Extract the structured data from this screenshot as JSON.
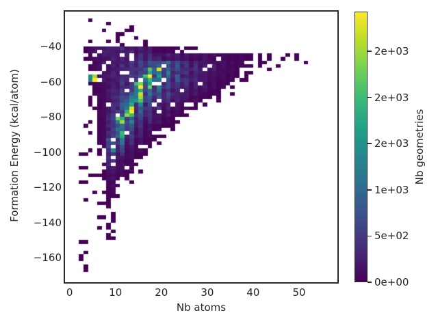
{
  "figure": {
    "background": "#ffffff",
    "spine_color": "#2b2b2b",
    "text_color": "#262626",
    "empty_bin_color": "#ffffff"
  },
  "chart_data": {
    "type": "heatmap",
    "subtype": "2d-histogram",
    "title": "",
    "xlabel": "Nb atoms",
    "ylabel": "Formation Energy (kcal/atom)",
    "colorbar_label": "Nb geometries",
    "grid": false,
    "legend_position": "colorbar-right",
    "xlim": [
      -1.0,
      58.35
    ],
    "ylim": [
      -173.9,
      -20.2
    ],
    "x_ticks": [
      {
        "value": 0,
        "label": "0"
      },
      {
        "value": 10,
        "label": "10"
      },
      {
        "value": 20,
        "label": "20"
      },
      {
        "value": 30,
        "label": "30"
      },
      {
        "value": 40,
        "label": "40"
      },
      {
        "value": 50,
        "label": "50"
      }
    ],
    "y_ticks": [
      {
        "value": -40,
        "label": "−40"
      },
      {
        "value": -60,
        "label": "−60"
      },
      {
        "value": -80,
        "label": "−80"
      },
      {
        "value": -100,
        "label": "−100"
      },
      {
        "value": -120,
        "label": "−120"
      },
      {
        "value": -140,
        "label": "−140"
      },
      {
        "value": -160,
        "label": "−160"
      }
    ],
    "colorbar": {
      "vmin": 0,
      "vmax": 2930,
      "ticks": [
        {
          "value": 0,
          "label": "0e+00"
        },
        {
          "value": 500,
          "label": "5e+02"
        },
        {
          "value": 1000,
          "label": "1e+03"
        },
        {
          "value": 1500,
          "label": "2e+03"
        },
        {
          "value": 2000,
          "label": "2e+03"
        },
        {
          "value": 2500,
          "label": "2e+03"
        }
      ]
    },
    "colormap": {
      "name": "viridis",
      "stops": [
        "#440154",
        "#482878",
        "#3e4989",
        "#31688e",
        "#26828e",
        "#1f9e89",
        "#35b779",
        "#6ece58",
        "#b5de2b",
        "#fde725"
      ]
    },
    "histogram": {
      "x_start": 0,
      "x_bin_width": 2,
      "y_start": -24,
      "y_bin_height": -4,
      "x_bin_count": 29,
      "y_bin_count": 36,
      "counts": [
        [
          0,
          0,
          8,
          0,
          10,
          0,
          0,
          0,
          0,
          0,
          0,
          0,
          0,
          0,
          0,
          0,
          0,
          0,
          0,
          0,
          0,
          0,
          0,
          0,
          0,
          0,
          0,
          0,
          0
        ],
        [
          0,
          0,
          0,
          8,
          0,
          0,
          12,
          0,
          0,
          0,
          0,
          0,
          0,
          0,
          0,
          0,
          0,
          0,
          0,
          0,
          0,
          0,
          0,
          0,
          0,
          0,
          0,
          0,
          0
        ],
        [
          0,
          0,
          0,
          10,
          15,
          12,
          0,
          8,
          0,
          0,
          0,
          0,
          0,
          0,
          0,
          0,
          0,
          0,
          0,
          0,
          0,
          0,
          0,
          0,
          0,
          0,
          0,
          0,
          0
        ],
        [
          0,
          0,
          12,
          0,
          20,
          15,
          12,
          0,
          10,
          0,
          0,
          0,
          0,
          0,
          0,
          0,
          0,
          0,
          0,
          0,
          0,
          0,
          0,
          0,
          0,
          0,
          0,
          0,
          0
        ],
        [
          0,
          10,
          120,
          200,
          260,
          240,
          220,
          180,
          150,
          60,
          40,
          30,
          25,
          20,
          15,
          0,
          0,
          0,
          0,
          0,
          0,
          0,
          0,
          0,
          0,
          0,
          0,
          20,
          0
        ],
        [
          0,
          8,
          60,
          150,
          250,
          280,
          300,
          280,
          260,
          220,
          200,
          180,
          150,
          120,
          100,
          80,
          60,
          50,
          40,
          30,
          25,
          20,
          15,
          10,
          20,
          10,
          0,
          0,
          0
        ],
        [
          0,
          0,
          40,
          120,
          220,
          300,
          350,
          400,
          500,
          800,
          700,
          450,
          350,
          280,
          220,
          160,
          110,
          70,
          45,
          30,
          20,
          12,
          8,
          0,
          0,
          8,
          0,
          0,
          0
        ],
        [
          0,
          0,
          30,
          100,
          200,
          280,
          350,
          450,
          1200,
          1700,
          800,
          550,
          420,
          300,
          220,
          150,
          100,
          60,
          35,
          20,
          12,
          8,
          0,
          0,
          0,
          0,
          0,
          0,
          0
        ],
        [
          0,
          0,
          2600,
          120,
          220,
          300,
          380,
          500,
          2400,
          1100,
          650,
          500,
          380,
          260,
          170,
          110,
          70,
          40,
          20,
          10,
          0,
          0,
          0,
          0,
          0,
          0,
          0,
          0,
          0
        ],
        [
          0,
          0,
          25,
          90,
          200,
          300,
          420,
          2800,
          1300,
          750,
          550,
          420,
          320,
          210,
          130,
          80,
          45,
          25,
          12,
          0,
          0,
          0,
          0,
          0,
          0,
          0,
          0,
          0,
          0
        ],
        [
          0,
          0,
          20,
          80,
          200,
          320,
          500,
          2100,
          850,
          580,
          430,
          330,
          230,
          150,
          90,
          50,
          25,
          12,
          0,
          0,
          0,
          0,
          0,
          0,
          0,
          0,
          0,
          0,
          0
        ],
        [
          0,
          0,
          18,
          70,
          220,
          400,
          1000,
          1700,
          650,
          460,
          330,
          230,
          150,
          80,
          40,
          18,
          8,
          0,
          0,
          0,
          0,
          0,
          0,
          0,
          0,
          0,
          0,
          0,
          0
        ],
        [
          0,
          0,
          15,
          60,
          250,
          520,
          1900,
          750,
          480,
          330,
          220,
          130,
          70,
          30,
          10,
          0,
          0,
          0,
          0,
          0,
          0,
          0,
          0,
          0,
          0,
          0,
          0,
          0,
          0
        ],
        [
          0,
          0,
          12,
          55,
          300,
          620,
          2400,
          560,
          360,
          230,
          140,
          70,
          28,
          12,
          0,
          0,
          0,
          0,
          0,
          0,
          0,
          0,
          0,
          0,
          0,
          0,
          0,
          0,
          0
        ],
        [
          0,
          10,
          10,
          50,
          350,
          2500,
          850,
          380,
          230,
          130,
          60,
          25,
          10,
          0,
          0,
          0,
          0,
          0,
          0,
          0,
          0,
          0,
          0,
          0,
          0,
          0,
          0,
          0,
          0
        ],
        [
          0,
          10,
          0,
          45,
          400,
          1400,
          560,
          260,
          140,
          60,
          22,
          8,
          0,
          0,
          0,
          0,
          0,
          0,
          0,
          0,
          0,
          0,
          0,
          0,
          0,
          0,
          0,
          0,
          0
        ],
        [
          0,
          0,
          10,
          40,
          460,
          1150,
          380,
          170,
          75,
          28,
          10,
          8,
          0,
          0,
          0,
          0,
          0,
          0,
          0,
          0,
          0,
          0,
          0,
          0,
          0,
          0,
          0,
          0,
          0
        ],
        [
          0,
          8,
          0,
          35,
          900,
          680,
          240,
          95,
          38,
          14,
          0,
          0,
          0,
          0,
          0,
          0,
          0,
          0,
          0,
          0,
          0,
          0,
          0,
          0,
          0,
          0,
          0,
          0,
          0
        ],
        [
          0,
          0,
          8,
          30,
          800,
          390,
          140,
          55,
          18,
          8,
          0,
          0,
          0,
          0,
          0,
          0,
          0,
          0,
          0,
          0,
          0,
          0,
          0,
          0,
          0,
          0,
          0,
          0,
          0
        ],
        [
          0,
          8,
          0,
          25,
          580,
          240,
          85,
          32,
          10,
          0,
          0,
          0,
          0,
          0,
          0,
          0,
          0,
          0,
          0,
          0,
          0,
          0,
          0,
          0,
          0,
          0,
          0,
          0,
          0
        ],
        [
          0,
          0,
          6,
          20,
          300,
          140,
          48,
          18,
          0,
          0,
          0,
          0,
          0,
          0,
          0,
          0,
          0,
          0,
          0,
          0,
          0,
          0,
          0,
          0,
          0,
          0,
          0,
          0,
          0
        ],
        [
          0,
          6,
          0,
          15,
          200,
          95,
          28,
          9,
          0,
          0,
          0,
          0,
          0,
          0,
          0,
          0,
          0,
          0,
          0,
          0,
          0,
          0,
          0,
          0,
          0,
          0,
          0,
          0,
          0
        ],
        [
          0,
          0,
          6,
          12,
          120,
          55,
          14,
          0,
          0,
          0,
          0,
          0,
          0,
          0,
          0,
          0,
          0,
          0,
          0,
          0,
          0,
          0,
          0,
          0,
          0,
          0,
          0,
          0,
          0
        ],
        [
          0,
          5,
          0,
          10,
          80,
          32,
          8,
          0,
          0,
          0,
          0,
          0,
          0,
          0,
          0,
          0,
          0,
          0,
          0,
          0,
          0,
          0,
          0,
          0,
          0,
          0,
          0,
          0,
          0
        ],
        [
          0,
          0,
          5,
          8,
          50,
          18,
          0,
          0,
          0,
          0,
          0,
          0,
          0,
          0,
          0,
          0,
          0,
          0,
          0,
          0,
          0,
          0,
          0,
          0,
          0,
          0,
          0,
          0,
          0
        ],
        [
          0,
          5,
          0,
          0,
          30,
          10,
          0,
          0,
          0,
          0,
          0,
          0,
          0,
          0,
          0,
          0,
          0,
          0,
          0,
          0,
          0,
          0,
          0,
          0,
          0,
          0,
          0,
          0,
          0
        ],
        [
          0,
          0,
          0,
          6,
          18,
          6,
          0,
          0,
          0,
          0,
          0,
          0,
          0,
          0,
          0,
          0,
          0,
          0,
          0,
          0,
          0,
          0,
          0,
          0,
          0,
          0,
          0,
          0,
          0
        ],
        [
          0,
          0,
          0,
          0,
          12,
          0,
          0,
          0,
          0,
          0,
          0,
          0,
          0,
          0,
          0,
          0,
          0,
          0,
          0,
          0,
          0,
          0,
          0,
          0,
          0,
          0,
          0,
          0,
          0
        ],
        [
          0,
          5,
          0,
          5,
          8,
          0,
          0,
          0,
          0,
          0,
          0,
          0,
          0,
          0,
          0,
          0,
          0,
          0,
          0,
          0,
          0,
          0,
          0,
          0,
          0,
          0,
          0,
          0,
          0
        ],
        [
          0,
          0,
          5,
          5,
          6,
          0,
          0,
          0,
          0,
          0,
          0,
          0,
          0,
          0,
          0,
          0,
          0,
          0,
          0,
          0,
          0,
          0,
          0,
          0,
          0,
          0,
          0,
          0,
          0
        ],
        [
          0,
          0,
          0,
          0,
          5,
          0,
          0,
          0,
          0,
          0,
          0,
          0,
          0,
          0,
          0,
          0,
          0,
          0,
          0,
          0,
          0,
          0,
          0,
          0,
          0,
          0,
          0,
          0,
          0
        ],
        [
          0,
          4,
          0,
          0,
          4,
          0,
          0,
          0,
          0,
          0,
          0,
          0,
          0,
          0,
          0,
          0,
          0,
          0,
          0,
          0,
          0,
          0,
          0,
          0,
          0,
          0,
          0,
          0,
          0
        ],
        [
          0,
          4,
          0,
          0,
          0,
          0,
          0,
          0,
          0,
          0,
          0,
          0,
          0,
          0,
          0,
          0,
          0,
          0,
          0,
          0,
          0,
          0,
          0,
          0,
          0,
          0,
          0,
          0,
          0
        ],
        [
          0,
          4,
          0,
          0,
          0,
          0,
          0,
          0,
          0,
          0,
          0,
          0,
          0,
          0,
          0,
          0,
          0,
          0,
          0,
          0,
          0,
          0,
          0,
          0,
          0,
          0,
          0,
          0,
          0
        ],
        [
          0,
          4,
          0,
          0,
          0,
          0,
          0,
          0,
          0,
          0,
          0,
          0,
          0,
          0,
          0,
          0,
          0,
          0,
          0,
          0,
          0,
          0,
          0,
          0,
          0,
          0,
          0,
          0,
          0
        ],
        [
          0,
          4,
          0,
          0,
          0,
          0,
          0,
          0,
          0,
          0,
          0,
          0,
          0,
          0,
          0,
          0,
          0,
          0,
          0,
          0,
          0,
          0,
          0,
          0,
          0,
          0,
          0,
          0,
          0
        ]
      ]
    }
  }
}
